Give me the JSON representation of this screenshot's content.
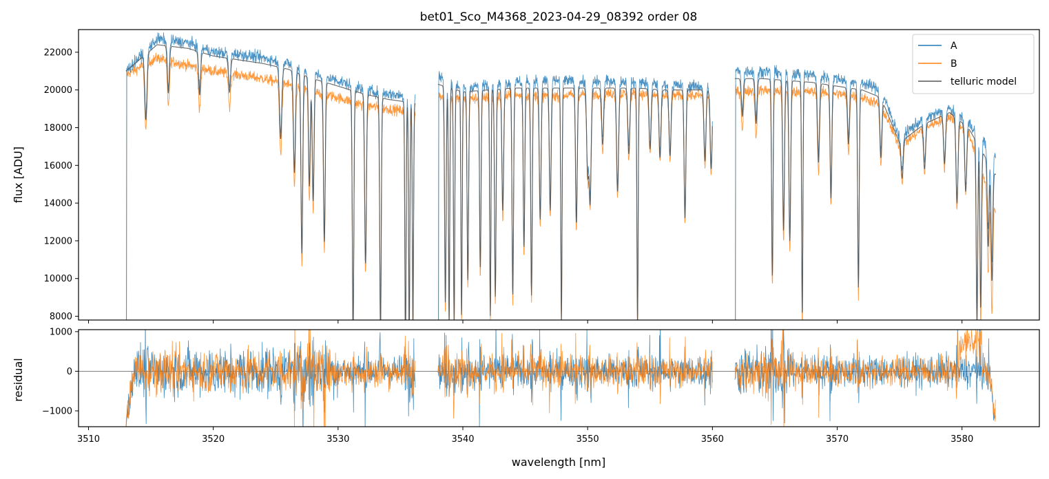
{
  "chart_data": {
    "title": "bet01_Sco_M4368_2023-04-29_08392  order 08",
    "xlabel": "wavelength [nm]",
    "xlim": [
      3509.2,
      3586.2
    ],
    "xticks": [
      3510,
      3520,
      3530,
      3540,
      3550,
      3560,
      3570,
      3580
    ],
    "xtick_labels": [
      "3510",
      "3520",
      "3530",
      "3540",
      "3550",
      "3560",
      "3570",
      "3580"
    ],
    "panels": [
      {
        "type": "line",
        "ylabel": "flux [ADU]",
        "ylim": [
          7800,
          23200
        ],
        "yticks": [
          8000,
          10000,
          12000,
          14000,
          16000,
          18000,
          20000,
          22000
        ],
        "ytick_labels": [
          "8000",
          "10000",
          "12000",
          "14000",
          "16000",
          "18000",
          "20000",
          "22000"
        ],
        "legend_position": "top-right",
        "segments": [
          [
            3513.0,
            3536.2
          ],
          [
            3538.0,
            3560.0
          ],
          [
            3561.8,
            3582.7
          ]
        ],
        "series": [
          {
            "name": "A",
            "color": "#1f77b4",
            "x": [
              3513.0,
              3515.5,
              3518,
              3520,
              3522,
              3524,
              3526,
              3528,
              3530,
              3532,
              3534,
              3536.2,
              3538,
              3540,
              3542,
              3544,
              3546,
              3548,
              3550,
              3552,
              3554,
              3556,
              3558,
              3560,
              3561.8,
              3564,
              3566,
              3568,
              3570,
              3572,
              3573.5,
              3575,
              3577,
              3579,
              3580.5,
              3582.7
            ],
            "y": [
              21000,
              22700,
              22500,
              22000,
              21900,
              21700,
              21400,
              20900,
              20500,
              20000,
              19800,
              19600,
              20800,
              20100,
              20300,
              20400,
              20500,
              20500,
              20400,
              20500,
              20400,
              20300,
              20200,
              20200,
              21000,
              21000,
              20900,
              20800,
              20600,
              20400,
              20000,
              17500,
              18500,
              19000,
              18300,
              16500
            ]
          },
          {
            "name": "B",
            "color": "#ff7f0e",
            "x": [
              3513.0,
              3515.5,
              3518,
              3520,
              3522,
              3524,
              3526,
              3528,
              3530,
              3532,
              3534,
              3536.2,
              3538,
              3540,
              3542,
              3544,
              3546,
              3548,
              3550,
              3552,
              3554,
              3556,
              3558,
              3560,
              3561.8,
              3564,
              3566,
              3568,
              3570,
              3572,
              3573.5,
              3575,
              3577,
              3579,
              3580.5,
              3582.7
            ],
            "y": [
              20800,
              21700,
              21300,
              21000,
              20800,
              20600,
              20300,
              19900,
              19600,
              19200,
              19000,
              18800,
              19700,
              19500,
              19600,
              19700,
              19700,
              19700,
              19800,
              19800,
              19800,
              19700,
              19700,
              19700,
              19900,
              20000,
              19900,
              19900,
              19800,
              19600,
              19200,
              17000,
              18000,
              18600,
              17800,
              13500
            ]
          },
          {
            "name": "telluric model",
            "color": "#555555",
            "x": [
              3513.0,
              3515.5,
              3518,
              3520,
              3522,
              3524,
              3526,
              3528,
              3530,
              3532,
              3534,
              3536.2,
              3538,
              3540,
              3542,
              3544,
              3546,
              3548,
              3550,
              3552,
              3554,
              3556,
              3558,
              3560,
              3561.8,
              3564,
              3566,
              3568,
              3570,
              3572,
              3573.5,
              3575,
              3577,
              3579,
              3580.5,
              3582.7
            ],
            "y": [
              21000,
              22400,
              22200,
              21800,
              21600,
              21400,
              21100,
              20600,
              20200,
              19800,
              19500,
              19300,
              20300,
              19900,
              20000,
              20100,
              20100,
              20100,
              20100,
              20100,
              20100,
              20000,
              20000,
              20000,
              20600,
              20600,
              20500,
              20400,
              20200,
              20000,
              19600,
              17200,
              18200,
              18800,
              18000,
              15500
            ]
          }
        ],
        "absorption_lines": [
          {
            "x": 3514.6,
            "depth": 3500,
            "width": 0.09
          },
          {
            "x": 3516.4,
            "depth": 2500,
            "width": 0.08
          },
          {
            "x": 3518.9,
            "depth": 2300,
            "width": 0.08
          },
          {
            "x": 3521.3,
            "depth": 1800,
            "width": 0.08
          },
          {
            "x": 3525.4,
            "depth": 3800,
            "width": 0.09
          },
          {
            "x": 3526.5,
            "depth": 5400,
            "width": 0.08
          },
          {
            "x": 3527.1,
            "depth": 9500,
            "width": 0.07
          },
          {
            "x": 3527.7,
            "depth": 5800,
            "width": 0.07
          },
          {
            "x": 3528.0,
            "depth": 6500,
            "width": 0.07
          },
          {
            "x": 3528.9,
            "depth": 8500,
            "width": 0.07
          },
          {
            "x": 3531.2,
            "depth": 13000,
            "width": 0.06
          },
          {
            "x": 3532.2,
            "depth": 9000,
            "width": 0.07
          },
          {
            "x": 3533.4,
            "depth": 12500,
            "width": 0.06
          },
          {
            "x": 3535.4,
            "depth": 13000,
            "width": 0.05
          },
          {
            "x": 3535.7,
            "depth": 12500,
            "width": 0.05
          },
          {
            "x": 3536.0,
            "depth": 12000,
            "width": 0.05
          },
          {
            "x": 3538.6,
            "depth": 11500,
            "width": 0.06
          },
          {
            "x": 3538.9,
            "depth": 12500,
            "width": 0.05
          },
          {
            "x": 3539.3,
            "depth": 12500,
            "width": 0.05
          },
          {
            "x": 3539.9,
            "depth": 12000,
            "width": 0.05
          },
          {
            "x": 3540.4,
            "depth": 10000,
            "width": 0.06
          },
          {
            "x": 3541.4,
            "depth": 9500,
            "width": 0.06
          },
          {
            "x": 3542.2,
            "depth": 12000,
            "width": 0.05
          },
          {
            "x": 3542.6,
            "depth": 11000,
            "width": 0.06
          },
          {
            "x": 3543.2,
            "depth": 6500,
            "width": 0.07
          },
          {
            "x": 3544.0,
            "depth": 11000,
            "width": 0.06
          },
          {
            "x": 3544.9,
            "depth": 8500,
            "width": 0.06
          },
          {
            "x": 3545.5,
            "depth": 11000,
            "width": 0.06
          },
          {
            "x": 3546.2,
            "depth": 7000,
            "width": 0.07
          },
          {
            "x": 3547.0,
            "depth": 6500,
            "width": 0.07
          },
          {
            "x": 3547.9,
            "depth": 12500,
            "width": 0.05
          },
          {
            "x": 3549.1,
            "depth": 7200,
            "width": 0.07
          },
          {
            "x": 3550.0,
            "depth": 4500,
            "width": 0.08
          },
          {
            "x": 3550.2,
            "depth": 6000,
            "width": 0.08
          },
          {
            "x": 3551.2,
            "depth": 3000,
            "width": 0.08
          },
          {
            "x": 3552.4,
            "depth": 5500,
            "width": 0.08
          },
          {
            "x": 3553.3,
            "depth": 3500,
            "width": 0.08
          },
          {
            "x": 3554.0,
            "depth": 12500,
            "width": 0.05
          },
          {
            "x": 3555.0,
            "depth": 3200,
            "width": 0.08
          },
          {
            "x": 3555.8,
            "depth": 3600,
            "width": 0.08
          },
          {
            "x": 3556.6,
            "depth": 3500,
            "width": 0.08
          },
          {
            "x": 3557.8,
            "depth": 6800,
            "width": 0.07
          },
          {
            "x": 3559.4,
            "depth": 3800,
            "width": 0.08
          },
          {
            "x": 3559.9,
            "depth": 4200,
            "width": 0.08
          },
          {
            "x": 3562.4,
            "depth": 2000,
            "width": 0.08
          },
          {
            "x": 3563.5,
            "depth": 2400,
            "width": 0.08
          },
          {
            "x": 3564.8,
            "depth": 10500,
            "width": 0.06
          },
          {
            "x": 3565.7,
            "depth": 8000,
            "width": 0.07
          },
          {
            "x": 3566.2,
            "depth": 8500,
            "width": 0.07
          },
          {
            "x": 3567.2,
            "depth": 12500,
            "width": 0.05
          },
          {
            "x": 3568.5,
            "depth": 4200,
            "width": 0.08
          },
          {
            "x": 3569.5,
            "depth": 6000,
            "width": 0.07
          },
          {
            "x": 3570.9,
            "depth": 3000,
            "width": 0.08
          },
          {
            "x": 3571.7,
            "depth": 10500,
            "width": 0.06
          },
          {
            "x": 3573.5,
            "depth": 3200,
            "width": 0.08
          },
          {
            "x": 3575.2,
            "depth": 2000,
            "width": 0.08
          },
          {
            "x": 3577.0,
            "depth": 2400,
            "width": 0.08
          },
          {
            "x": 3578.6,
            "depth": 2600,
            "width": 0.08
          },
          {
            "x": 3579.6,
            "depth": 4500,
            "width": 0.08
          },
          {
            "x": 3580.3,
            "depth": 3500,
            "width": 0.08
          },
          {
            "x": 3581.2,
            "depth": 9500,
            "width": 0.06
          },
          {
            "x": 3581.5,
            "depth": 8500,
            "width": 0.06
          },
          {
            "x": 3582.1,
            "depth": 4500,
            "width": 0.07
          },
          {
            "x": 3582.4,
            "depth": 6000,
            "width": 0.07
          }
        ]
      },
      {
        "type": "line",
        "ylabel": "residual",
        "ylim": [
          -1400,
          1050
        ],
        "yticks": [
          -1000,
          0,
          1000
        ],
        "ytick_labels": [
          "−1000",
          "0",
          "1000"
        ],
        "hline": 0,
        "series": [
          {
            "name": "A",
            "color": "#1f77b4",
            "noise_amplitude": 380
          },
          {
            "name": "B",
            "color": "#ff7f0e",
            "noise_amplitude": 350
          }
        ]
      }
    ]
  },
  "legend": {
    "items": [
      {
        "label": "A",
        "color": "#1f77b4"
      },
      {
        "label": "B",
        "color": "#ff7f0e"
      },
      {
        "label": "telluric model",
        "color": "#555555"
      }
    ]
  }
}
